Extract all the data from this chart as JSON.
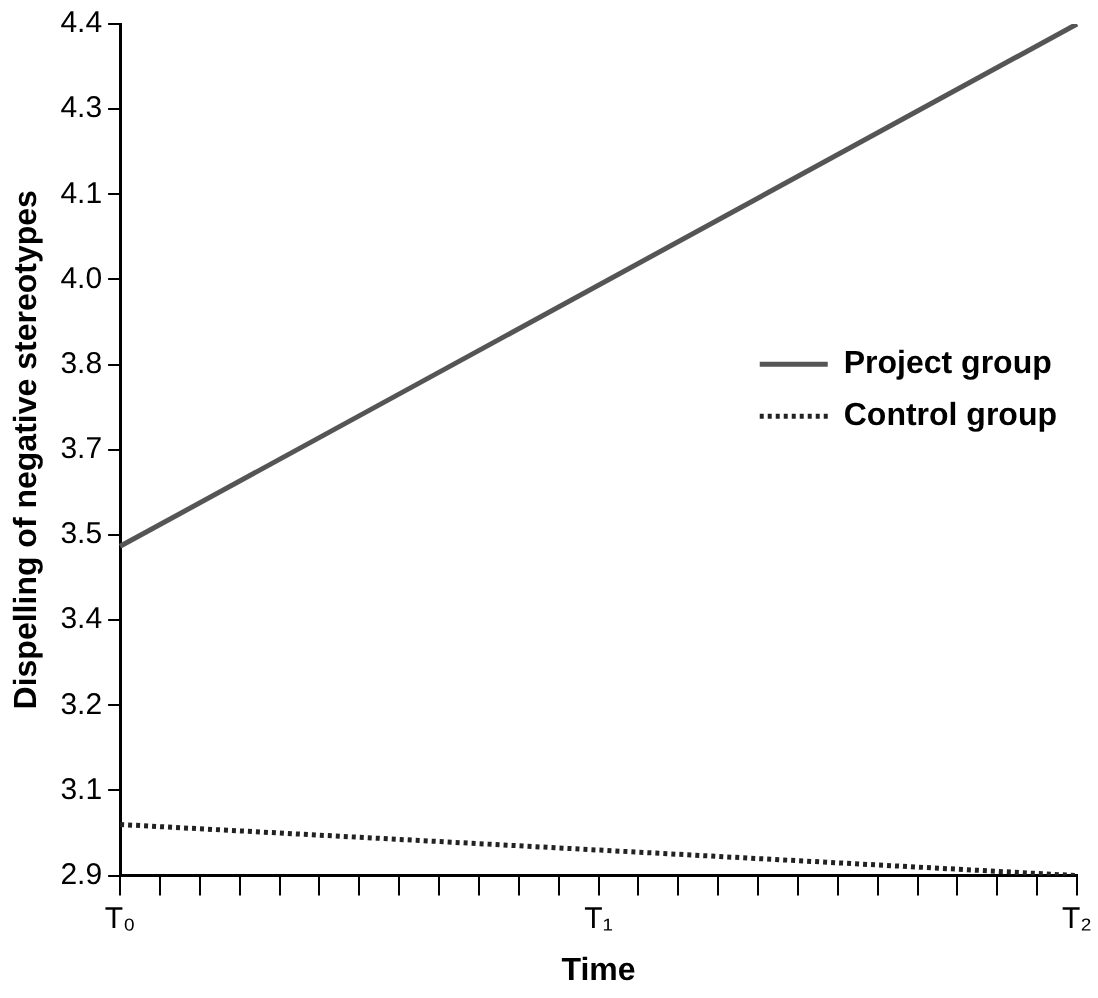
{
  "chart_data": {
    "type": "line",
    "xlabel": "Time",
    "ylabel": "Dispelling of negative stereotypes",
    "categories": [
      "T₀",
      null,
      null,
      null,
      null,
      null,
      null,
      null,
      null,
      null,
      null,
      null,
      "T₁",
      null,
      null,
      null,
      null,
      null,
      null,
      null,
      null,
      null,
      null,
      null,
      "T₂"
    ],
    "series": [
      {
        "name": "Project group",
        "color": "#555555",
        "values": [
          3.48,
          null,
          null,
          null,
          null,
          null,
          null,
          null,
          null,
          null,
          null,
          null,
          null,
          null,
          null,
          null,
          null,
          null,
          null,
          null,
          null,
          null,
          null,
          null,
          4.4
        ],
        "line_style": "solid"
      },
      {
        "name": "Control group",
        "color": "#222222",
        "values": [
          2.99,
          null,
          null,
          null,
          null,
          null,
          null,
          null,
          null,
          null,
          null,
          null,
          null,
          null,
          null,
          null,
          null,
          null,
          null,
          null,
          null,
          null,
          null,
          null,
          2.9
        ],
        "line_style": "dotted"
      }
    ],
    "ylim": [
      2.9,
      4.4
    ],
    "yticks": [
      2.9,
      {
        "value": 3.05,
        "label": "3.1"
      },
      3.2,
      {
        "value": 3.35,
        "label": "3.4"
      },
      3.5,
      {
        "value": 3.65,
        "label": "3.7"
      },
      3.8,
      {
        "value": 3.95,
        "label": "4.0"
      },
      4.1,
      {
        "value": 4.25,
        "label": "4.3"
      },
      4.4
    ],
    "grid": false,
    "legend": "right",
    "marker": "none"
  }
}
